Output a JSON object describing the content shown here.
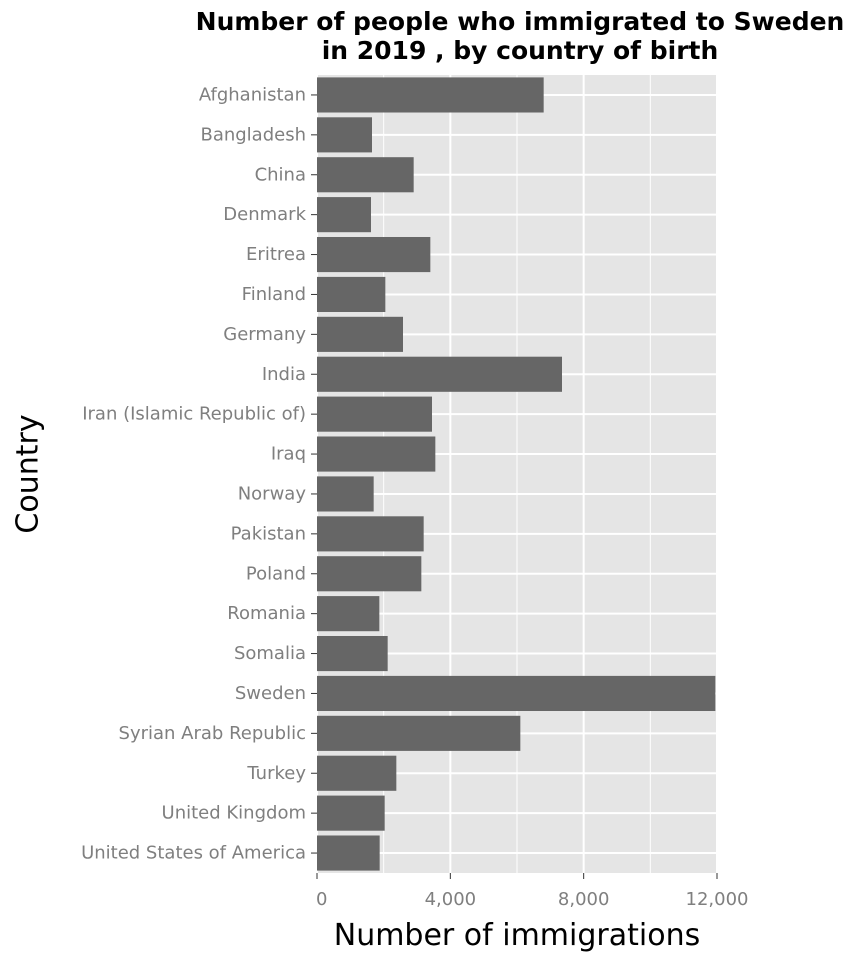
{
  "chart_data": {
    "type": "bar",
    "orientation": "horizontal",
    "title": "Number of people who immigrated to Sweden in 2019 , by country of birth",
    "title_lines": [
      "Number of people who immigrated to Sweden",
      "in 2019 , by country of birth"
    ],
    "xlabel": "Number of immigrations",
    "ylabel": "Country",
    "xlim": [
      0,
      12000
    ],
    "xticks": [
      0,
      4000,
      8000,
      12000
    ],
    "xtick_labels": [
      "0",
      "4,000",
      "8,000",
      "12,000"
    ],
    "grid": true,
    "legend": "none",
    "categories": [
      "Afghanistan",
      "Bangladesh",
      "China",
      "Denmark",
      "Eritrea",
      "Finland",
      "Germany",
      "India",
      "Iran (Islamic Republic of)",
      "Iraq",
      "Norway",
      "Pakistan",
      "Poland",
      "Romania",
      "Somalia",
      "Sweden",
      "Syrian Arab Republic",
      "Turkey",
      "United Kingdom",
      "United States of America"
    ],
    "values": [
      6800,
      1650,
      2900,
      1620,
      3400,
      2050,
      2580,
      7350,
      3450,
      3550,
      1700,
      3200,
      3130,
      1870,
      2120,
      11950,
      6100,
      2380,
      2030,
      1880
    ],
    "colors": {
      "bar": "#666666",
      "panel": "#e5e5e5",
      "grid": "#ffffff",
      "tick_label": "#7f7f7f",
      "axis_text": "#000000"
    }
  }
}
